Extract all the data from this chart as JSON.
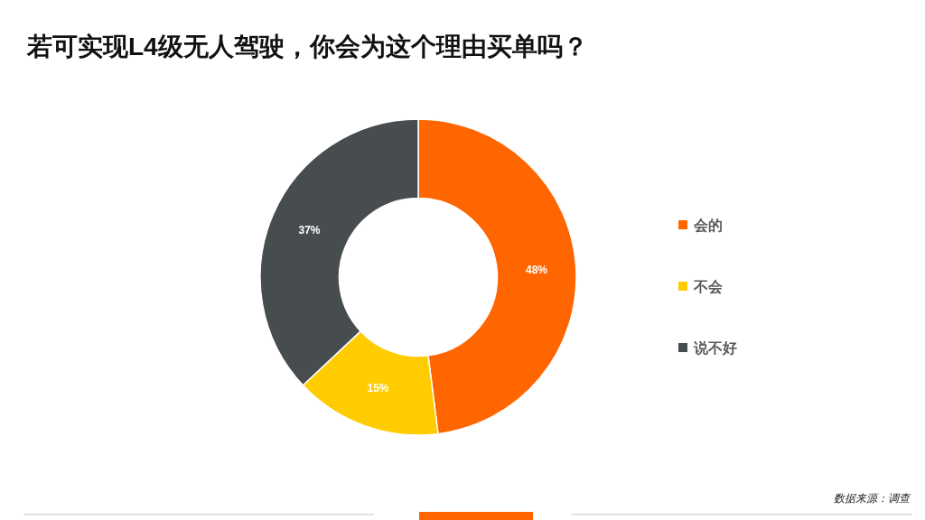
{
  "chart_data": {
    "type": "donut",
    "title": "若可实现L4级无人驾驶，你会为这个理由买单吗？",
    "categories": [
      "会的",
      "不会",
      "说不好"
    ],
    "values": [
      48,
      15,
      37
    ],
    "colors": [
      "#ff6600",
      "#ffcc00",
      "#474c4f"
    ],
    "value_labels": [
      "48%",
      "15%",
      "37%"
    ],
    "legend": "right",
    "annotations": [
      "数据来源：调查"
    ]
  }
}
